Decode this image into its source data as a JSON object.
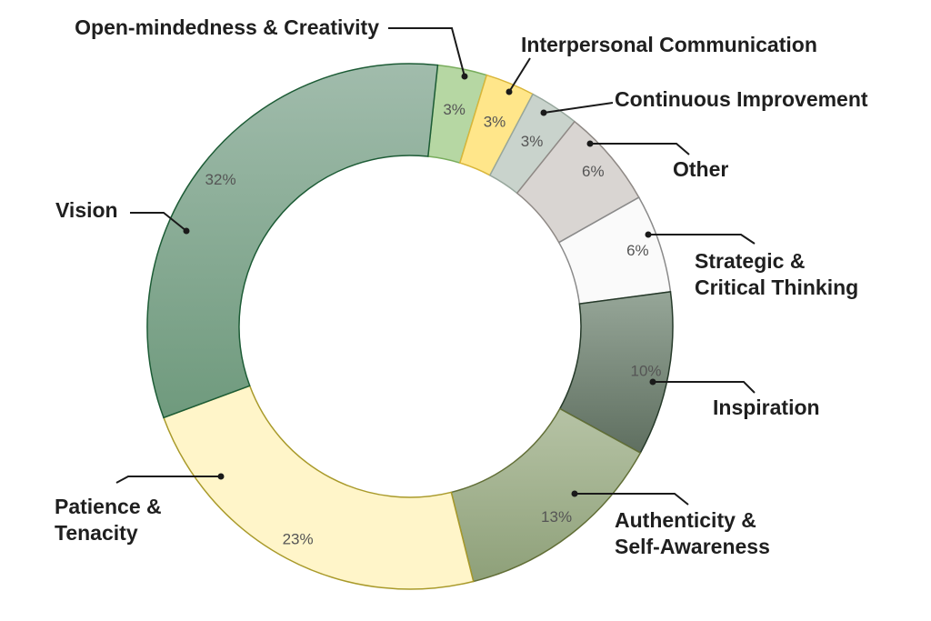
{
  "chart_data": {
    "type": "pie",
    "variant": "donut",
    "title": "",
    "start": "top, clockwise",
    "slices": [
      {
        "name": "Open-mindedness & Creativity",
        "label_lines": [
          "Open-mindedness & Creativity"
        ],
        "value": 3,
        "pct_text": "3%",
        "color": "#b6d7a3",
        "stroke": "#79ad5d"
      },
      {
        "name": "Interpersonal Communication",
        "label_lines": [
          "Interpersonal Communication"
        ],
        "value": 3,
        "pct_text": "3%",
        "color": "#ffe68a",
        "stroke": "#d9b63a"
      },
      {
        "name": "Continuous Improvement",
        "label_lines": [
          "Continuous Improvement"
        ],
        "value": 3,
        "pct_text": "3%",
        "color": "#c9d3cc",
        "stroke": "#97a79d"
      },
      {
        "name": "Other",
        "label_lines": [
          "Other"
        ],
        "value": 6,
        "pct_text": "6%",
        "color": "#d9d5d2",
        "stroke": "#8f8985"
      },
      {
        "name": "Strategic & Critical Thinking",
        "label_lines": [
          "Strategic &",
          "Critical Thinking"
        ],
        "value": 6,
        "pct_text": "6%",
        "color": "#fafafa",
        "stroke": "#8a8a8a"
      },
      {
        "name": "Inspiration",
        "label_lines": [
          "Inspiration"
        ],
        "value": 10,
        "pct_text": "10%",
        "color": "#7c8c7f",
        "stroke": "#263a2a",
        "gradient": [
          "#96a698",
          "#5f6f60"
        ]
      },
      {
        "name": "Authenticity & Self-Awareness",
        "label_lines": [
          "Authenticity &",
          "Self-Awareness"
        ],
        "value": 13,
        "pct_text": "13%",
        "color": "#a8b89a",
        "stroke": "#626f37",
        "gradient": [
          "#b6c3a5",
          "#8ea079"
        ]
      },
      {
        "name": "Patience & Tenacity",
        "label_lines": [
          "Patience &",
          "Tenacity"
        ],
        "value": 23,
        "pct_text": "23%",
        "color": "#fff5c9",
        "stroke": "#a99a2a"
      },
      {
        "name": "Vision",
        "label_lines": [
          "Vision"
        ],
        "value": 32,
        "pct_text": "32%",
        "color": "#88ab93",
        "stroke": "#1d5c36",
        "gradient": [
          "#a1bcac",
          "#6f9a7d"
        ]
      }
    ]
  }
}
